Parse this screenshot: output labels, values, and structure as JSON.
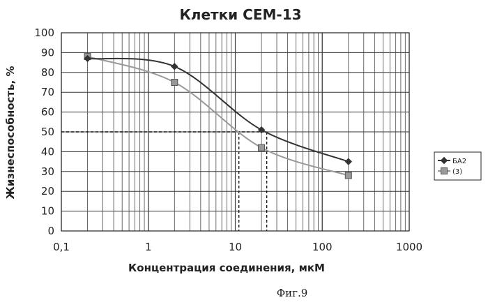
{
  "chart_data": {
    "type": "line",
    "title": "Клетки CEM-13",
    "xlabel": "Концентрация соединения, мкМ",
    "ylabel": "Жизнеспособность, %",
    "x_scale": "log",
    "xlim": [
      0.1,
      1000
    ],
    "ylim": [
      0,
      100
    ],
    "x_ticks": [
      "0,1",
      "1",
      "10",
      "100",
      "1000"
    ],
    "y_ticks": [
      "0",
      "10",
      "20",
      "30",
      "40",
      "50",
      "60",
      "70",
      "80",
      "90",
      "100"
    ],
    "grid": true,
    "legend_position": "right",
    "series": [
      {
        "name": "БА2",
        "marker": "diamond",
        "color": "#333333",
        "x": [
          0.2,
          2,
          20,
          200
        ],
        "y": [
          87,
          83,
          51,
          35
        ]
      },
      {
        "name": "(3)",
        "marker": "square",
        "color": "#999999",
        "x": [
          0.2,
          2,
          20,
          200
        ],
        "y": [
          88,
          75,
          42,
          28
        ]
      }
    ],
    "reference_lines": {
      "y": 50,
      "x": [
        11,
        23
      ]
    }
  },
  "caption": "Фиг.9"
}
